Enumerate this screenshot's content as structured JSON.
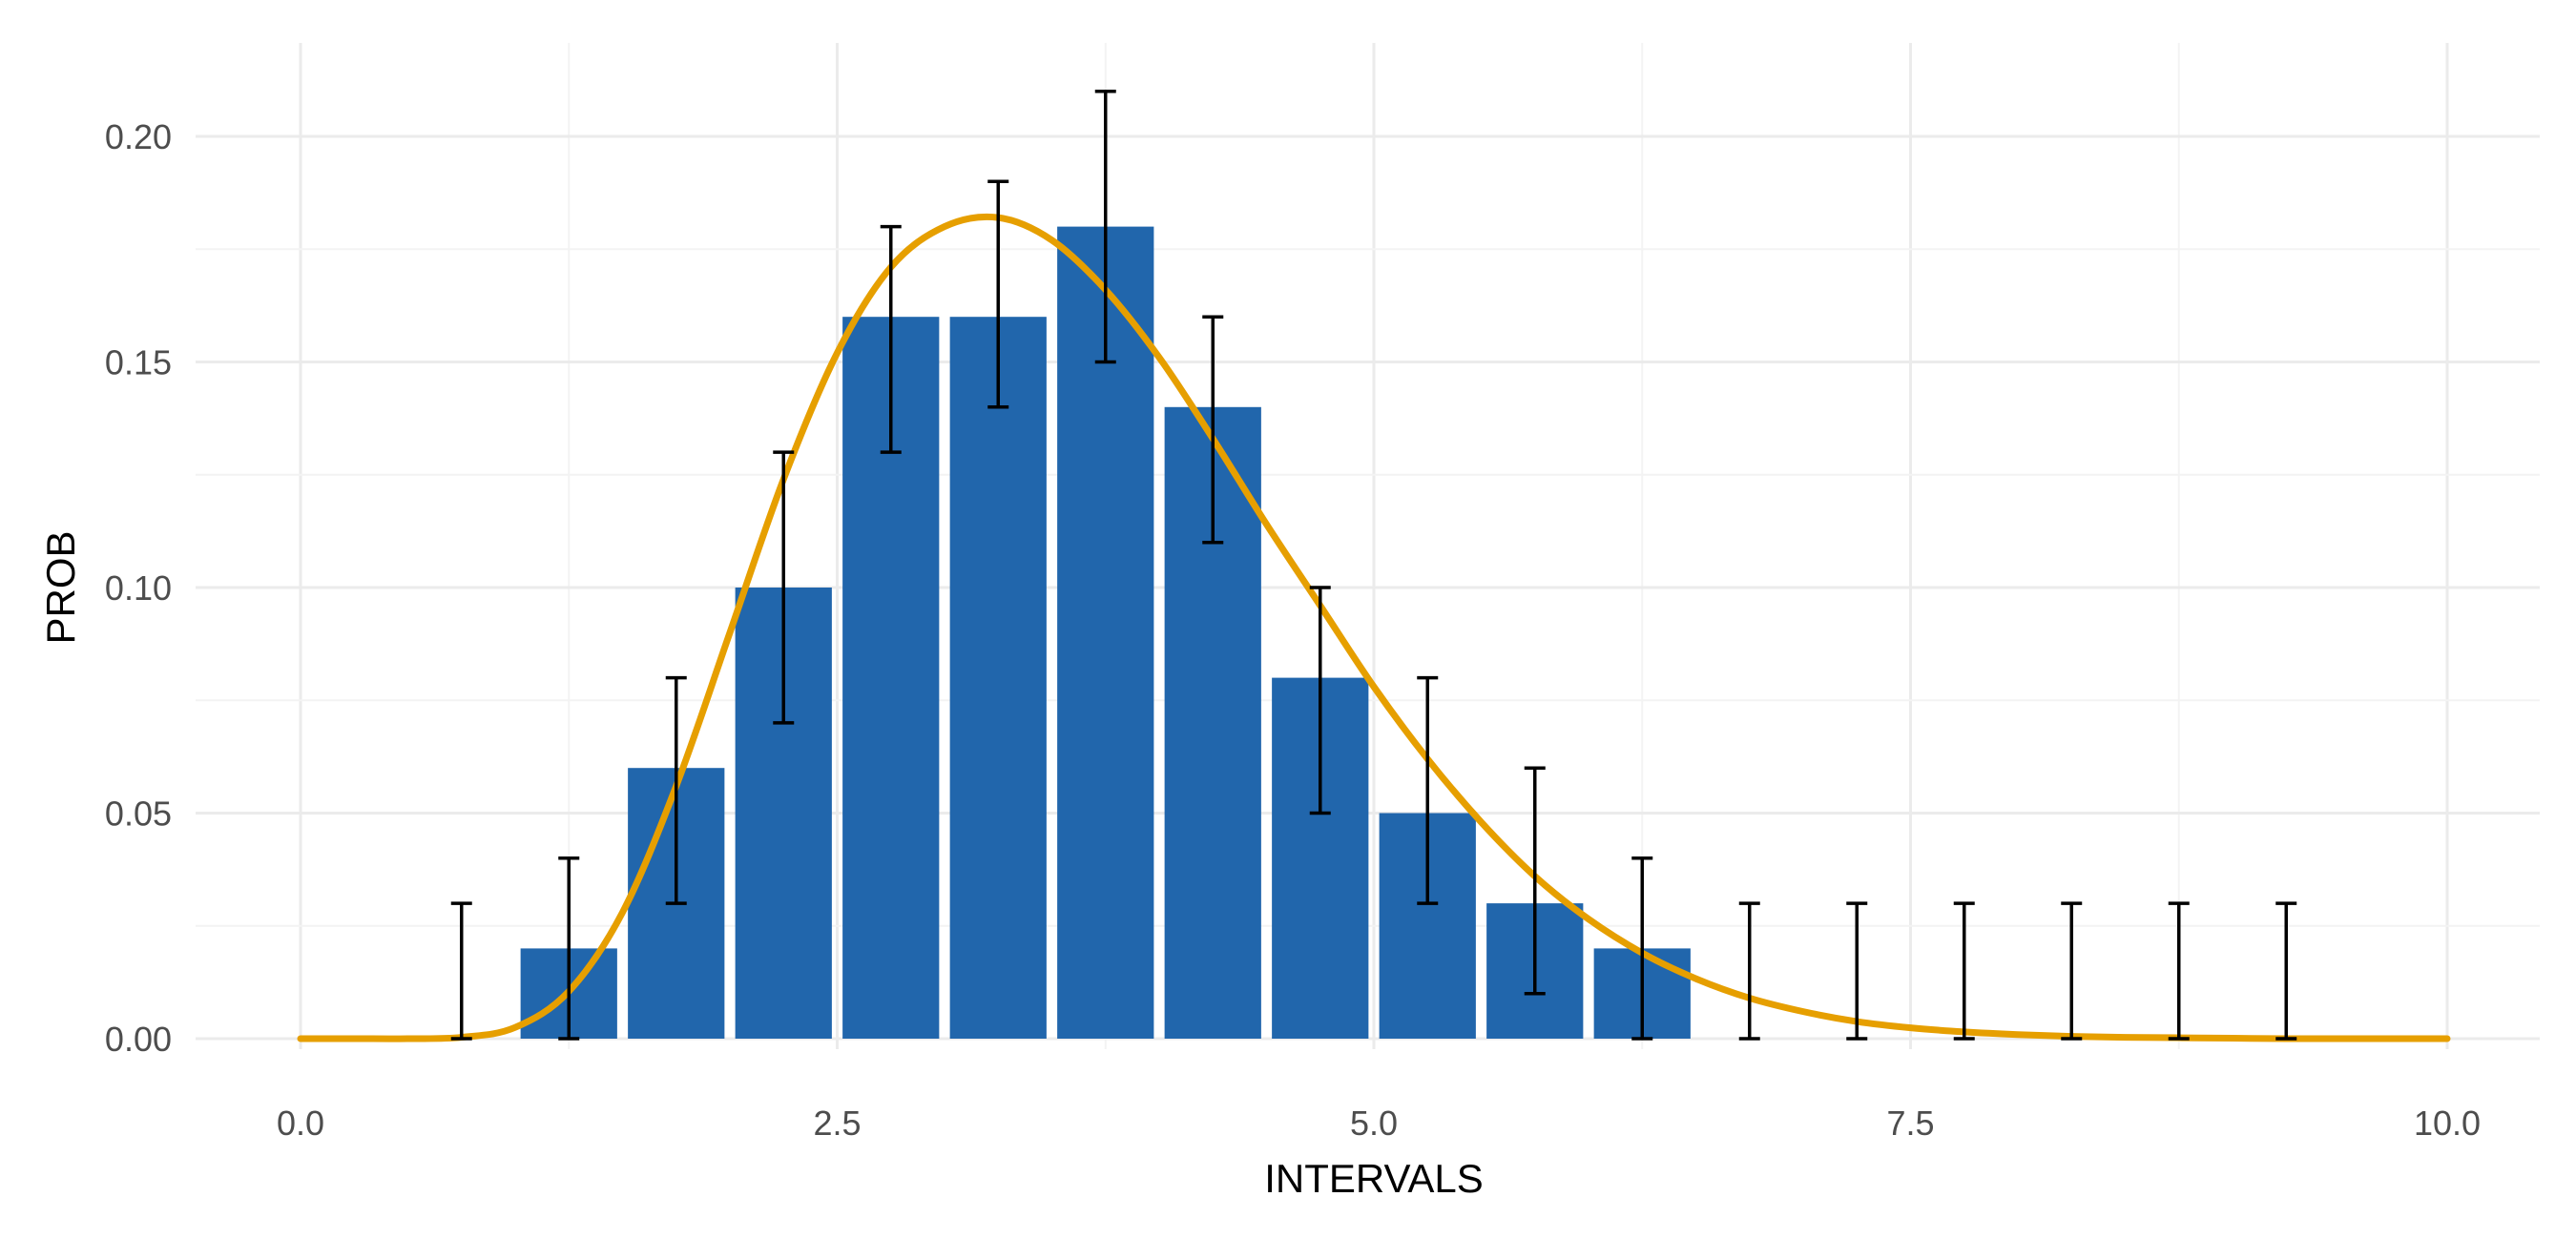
{
  "chart_data": {
    "type": "bar",
    "xlabel": "INTERVALS",
    "ylabel": "PROB",
    "xlim": [
      0,
      10
    ],
    "ylim": [
      0,
      0.2
    ],
    "x_ticks": [
      "0.0",
      "2.5",
      "5.0",
      "7.5",
      "10.0"
    ],
    "y_ticks": [
      "0.00",
      "0.05",
      "0.10",
      "0.15",
      "0.20"
    ],
    "grid": true,
    "bar_color": "#2166ac",
    "curve_color": "#e69f00",
    "bins": [
      {
        "x": 0.75,
        "prob": 0.0,
        "lower": 0.0,
        "upper": 0.03
      },
      {
        "x": 1.25,
        "prob": 0.02,
        "lower": 0.0,
        "upper": 0.04
      },
      {
        "x": 1.75,
        "prob": 0.06,
        "lower": 0.03,
        "upper": 0.08
      },
      {
        "x": 2.25,
        "prob": 0.1,
        "lower": 0.07,
        "upper": 0.13
      },
      {
        "x": 2.75,
        "prob": 0.16,
        "lower": 0.13,
        "upper": 0.18
      },
      {
        "x": 3.25,
        "prob": 0.16,
        "lower": 0.14,
        "upper": 0.19
      },
      {
        "x": 3.75,
        "prob": 0.18,
        "lower": 0.15,
        "upper": 0.21
      },
      {
        "x": 4.25,
        "prob": 0.14,
        "lower": 0.11,
        "upper": 0.16
      },
      {
        "x": 4.75,
        "prob": 0.08,
        "lower": 0.05,
        "upper": 0.1
      },
      {
        "x": 5.25,
        "prob": 0.05,
        "lower": 0.03,
        "upper": 0.08
      },
      {
        "x": 5.75,
        "prob": 0.03,
        "lower": 0.01,
        "upper": 0.06
      },
      {
        "x": 6.25,
        "prob": 0.02,
        "lower": 0.0,
        "upper": 0.04
      },
      {
        "x": 6.75,
        "prob": 0.0,
        "lower": 0.0,
        "upper": 0.03
      },
      {
        "x": 7.25,
        "prob": 0.0,
        "lower": 0.0,
        "upper": 0.03
      },
      {
        "x": 7.75,
        "prob": 0.0,
        "lower": 0.0,
        "upper": 0.03
      },
      {
        "x": 8.25,
        "prob": 0.0,
        "lower": 0.0,
        "upper": 0.03
      },
      {
        "x": 8.75,
        "prob": 0.0,
        "lower": 0.0,
        "upper": 0.03
      },
      {
        "x": 9.25,
        "prob": 0.0,
        "lower": 0.0,
        "upper": 0.03
      }
    ],
    "bin_width": 0.5,
    "curve": {
      "x": [
        0.0,
        0.25,
        0.5,
        0.75,
        1.0,
        1.25,
        1.5,
        1.75,
        2.0,
        2.25,
        2.5,
        2.75,
        3.0,
        3.25,
        3.5,
        3.75,
        4.0,
        4.25,
        4.5,
        4.75,
        5.0,
        5.25,
        5.5,
        5.75,
        6.0,
        6.25,
        6.5,
        6.75,
        7.0,
        7.25,
        7.5,
        7.75,
        8.0,
        8.25,
        8.5,
        8.75,
        9.0,
        9.25,
        9.5,
        9.75,
        10.0
      ],
      "y": [
        0.0,
        0.0,
        0.0,
        0.0003,
        0.0025,
        0.0105,
        0.028,
        0.056,
        0.09,
        0.124,
        0.152,
        0.171,
        0.18,
        0.182,
        0.177,
        0.166,
        0.151,
        0.133,
        0.114,
        0.096,
        0.078,
        0.062,
        0.048,
        0.036,
        0.0265,
        0.019,
        0.0133,
        0.009,
        0.006,
        0.0038,
        0.0024,
        0.0015,
        0.0009,
        0.0005,
        0.0003,
        0.0002,
        0.0001,
        0.0,
        0.0,
        0.0,
        0.0
      ]
    }
  }
}
